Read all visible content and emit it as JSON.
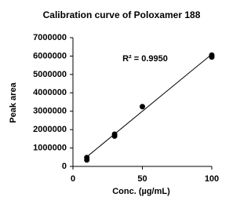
{
  "chart_data": {
    "type": "scatter",
    "title": "Calibration curve of Poloxamer 188",
    "x_label": "Conc. (µg/mL)",
    "y_label": "Peak area",
    "series": [
      {
        "name": "Poloxamer 188",
        "color": "#000000",
        "x": [
          10,
          10,
          30,
          30,
          50,
          100,
          100
        ],
        "values": [
          350000,
          480000,
          1650000,
          1750000,
          3250000,
          5950000,
          6050000
        ]
      }
    ],
    "trendline": {
      "x": [
        10,
        100
      ],
      "y": [
        520000,
        6100000
      ],
      "color": "#000000"
    },
    "annotation": "R² = 0.9950",
    "xlim": [
      0,
      100
    ],
    "xticks": [
      0,
      50,
      100
    ],
    "ylim": [
      0,
      7000000
    ],
    "yticks": [
      0,
      1000000,
      2000000,
      3000000,
      4000000,
      5000000,
      6000000,
      7000000
    ],
    "grid": false
  }
}
